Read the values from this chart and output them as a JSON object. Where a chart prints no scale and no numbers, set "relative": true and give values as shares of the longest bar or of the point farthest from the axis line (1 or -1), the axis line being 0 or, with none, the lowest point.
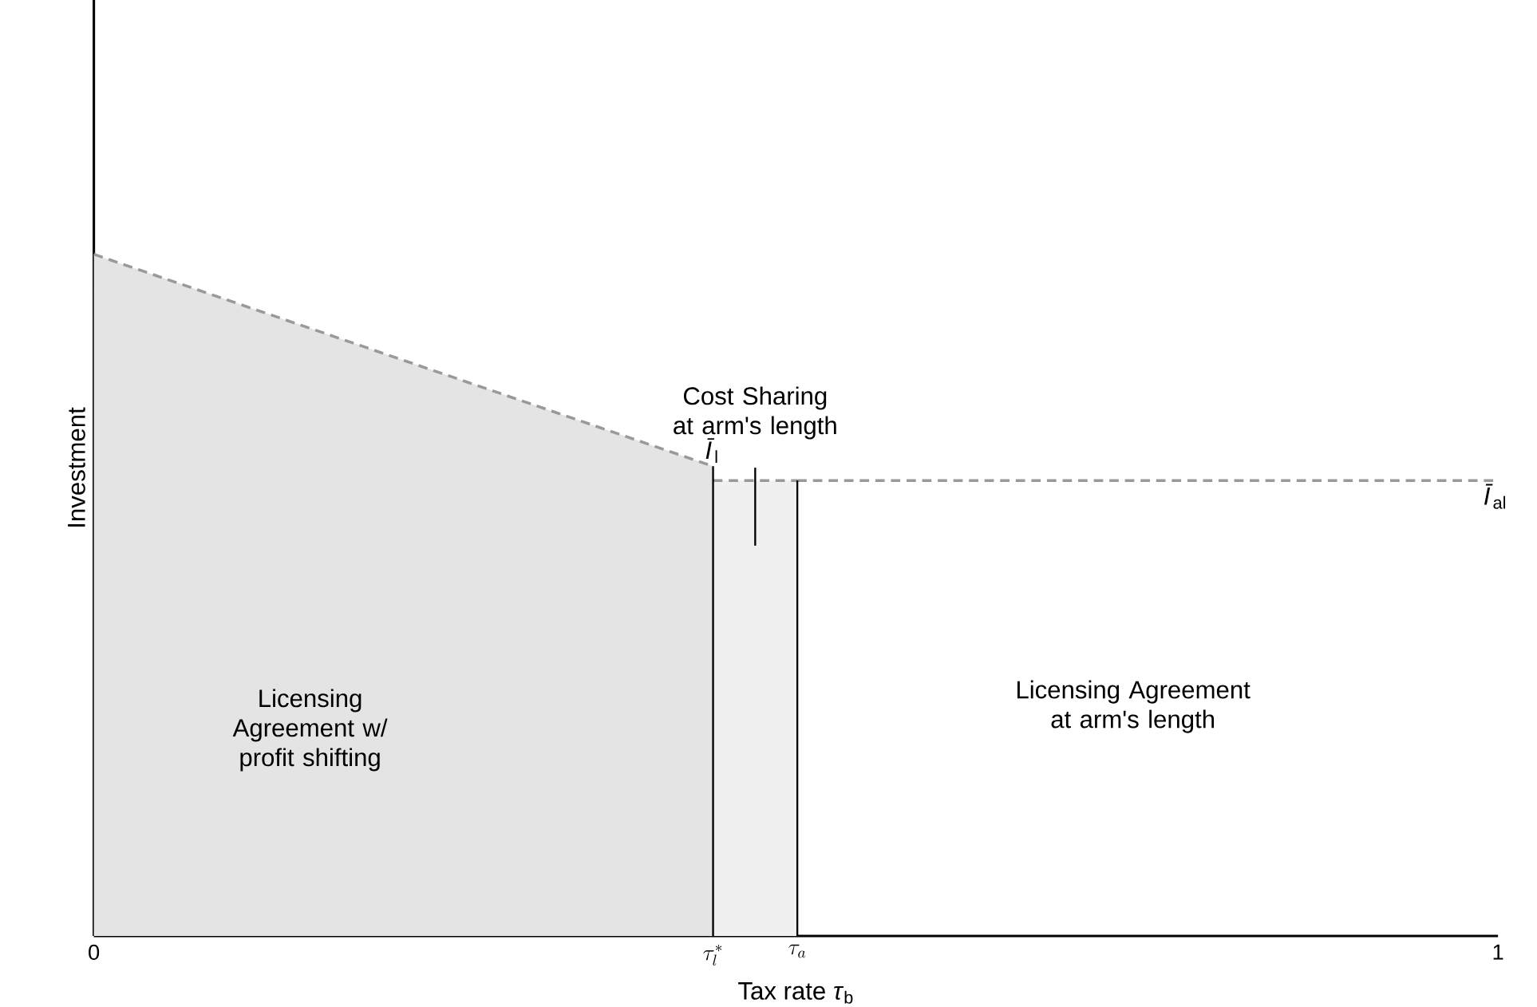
{
  "chart_data": {
    "type": "line",
    "relative": true,
    "xlabel": "Tax rate *τ*$_{b}$",
    "ylabel": "Investment",
    "xlim": [
      0,
      1
    ],
    "xticks": [
      0,
      {
        "value": 0.441,
        "label": "\\tau_l^*"
      },
      {
        "value": 0.501,
        "label": "\\tau_a"
      },
      1
    ],
    "line_style": "dashed",
    "series": [
      {
        "type": "area",
        "name": "*Ī*$_{l}$",
        "color": "#e4e4e4",
        "x": [
          0,
          0.441
        ],
        "values": [
          1,
          0.689
        ]
      },
      {
        "type": "area",
        "color": "#f0f0f0",
        "x": [
          0.441,
          0.501
        ],
        "values": [
          0.668,
          0.668
        ]
      },
      {
        "name": "*Ī*$_{al}$",
        "color": "#999999",
        "x": [
          0.501,
          1
        ],
        "values": [
          0.668,
          0.668
        ]
      },
      {
        "color": "#000000",
        "x": [
          0.441,
          0.441
        ],
        "values": [
          0,
          0.689
        ],
        "line_style": "solid"
      },
      {
        "color": "#000000",
        "x": [
          0.501,
          0.501
        ],
        "values": [
          0,
          0.668
        ],
        "line_style": "solid"
      }
    ],
    "annotations": [
      "Licensing Agreement w/ profit shifting",
      "Cost Sharing at arm's length",
      "Licensing Agreement at arm's length"
    ]
  }
}
